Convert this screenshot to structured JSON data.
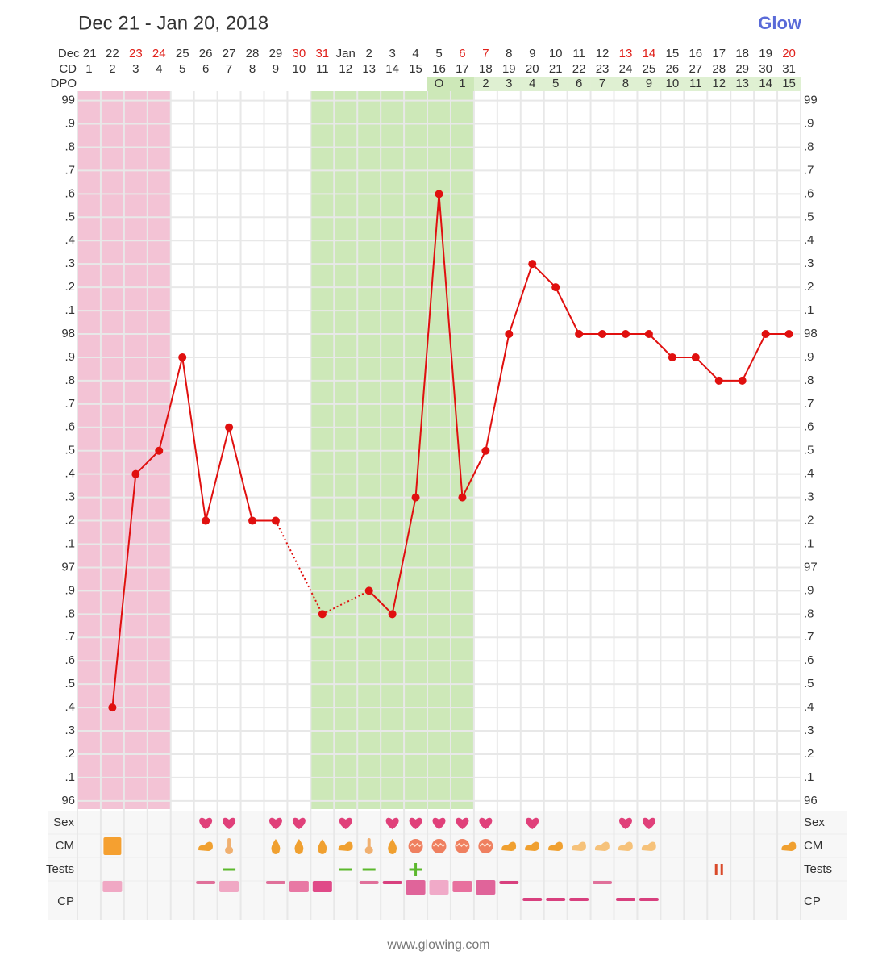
{
  "chart_data": {
    "type": "line",
    "title": "Dec 21 - Jan 20, 2018",
    "brand": "Glow",
    "footer": "www.glowing.com",
    "categories": [
      "Dec 21",
      "22",
      "23",
      "24",
      "25",
      "26",
      "27",
      "28",
      "29",
      "30",
      "31",
      "Jan",
      "2",
      "3",
      "4",
      "5",
      "6",
      "7",
      "8",
      "9",
      "10",
      "11",
      "12",
      "13",
      "14",
      "15",
      "16",
      "17",
      "18",
      "19",
      "20"
    ],
    "date_colors": [
      "#333",
      "#333",
      "#e0201a",
      "#e0201a",
      "#333",
      "#333",
      "#333",
      "#333",
      "#333",
      "#e0201a",
      "#e0201a",
      "#333",
      "#333",
      "#333",
      "#333",
      "#333",
      "#e0201a",
      "#e0201a",
      "#333",
      "#333",
      "#333",
      "#333",
      "#333",
      "#e0201a",
      "#e0201a",
      "#333",
      "#333",
      "#333",
      "#333",
      "#333",
      "#e0201a"
    ],
    "cd_label": "CD",
    "cd": [
      1,
      2,
      3,
      4,
      5,
      6,
      7,
      8,
      9,
      10,
      11,
      12,
      13,
      14,
      15,
      16,
      17,
      18,
      19,
      20,
      21,
      22,
      23,
      24,
      25,
      26,
      27,
      28,
      29,
      30,
      31
    ],
    "dpo_label": "DPO",
    "dpo": [
      null,
      null,
      null,
      null,
      null,
      null,
      null,
      null,
      null,
      null,
      null,
      null,
      null,
      null,
      null,
      "O",
      1,
      2,
      3,
      4,
      5,
      6,
      7,
      8,
      9,
      10,
      11,
      12,
      13,
      14,
      15
    ],
    "column_colors": [
      "#f3c3d5",
      "#f3c3d5",
      "#f3c3d5",
      "#f3c3d5",
      null,
      null,
      null,
      null,
      null,
      null,
      "#cde8b8",
      "#cde8b8",
      "#cde8b8",
      "#cde8b8",
      "#cde8b8",
      "#cde8b8",
      "#cde8b8",
      null,
      null,
      null,
      null,
      null,
      null,
      null,
      null,
      null,
      null,
      null,
      null,
      null,
      null
    ],
    "series": [
      {
        "color": "#e0100f",
        "values": [
          null,
          96.4,
          97.4,
          97.5,
          97.9,
          97.2,
          97.6,
          97.2,
          97.2,
          null,
          96.8,
          null,
          96.9,
          96.8,
          97.3,
          98.6,
          97.3,
          97.5,
          98.0,
          98.3,
          98.2,
          98.0,
          98.0,
          98.0,
          98.0,
          97.9,
          97.9,
          97.8,
          97.8,
          98.0,
          98.0
        ]
      }
    ],
    "ylim": [
      95.965,
      99.04
    ],
    "yticks": [
      96,
      {
        "value": 96.1,
        "label": ".1"
      },
      {
        "value": 96.2,
        "label": ".2"
      },
      {
        "value": 96.3,
        "label": ".3"
      },
      {
        "value": 96.4,
        "label": ".4"
      },
      {
        "value": 96.5,
        "label": ".5"
      },
      {
        "value": 96.6,
        "label": ".6"
      },
      {
        "value": 96.7,
        "label": ".7"
      },
      {
        "value": 96.8,
        "label": ".8"
      },
      {
        "value": 96.9,
        "label": ".9"
      },
      97,
      {
        "value": 97.1,
        "label": ".1"
      },
      {
        "value": 97.2,
        "label": ".2"
      },
      {
        "value": 97.3,
        "label": ".3"
      },
      {
        "value": 97.4,
        "label": ".4"
      },
      {
        "value": 97.5,
        "label": ".5"
      },
      {
        "value": 97.6,
        "label": ".6"
      },
      {
        "value": 97.7,
        "label": ".7"
      },
      {
        "value": 97.8,
        "label": ".8"
      },
      {
        "value": 97.9,
        "label": ".9"
      },
      98,
      {
        "value": 98.1,
        "label": ".1"
      },
      {
        "value": 98.2,
        "label": ".2"
      },
      {
        "value": 98.3,
        "label": ".3"
      },
      {
        "value": 98.4,
        "label": ".4"
      },
      {
        "value": 98.5,
        "label": ".5"
      },
      {
        "value": 98.6,
        "label": ".6"
      },
      {
        "value": 98.7,
        "label": ".7"
      },
      {
        "value": 98.8,
        "label": ".8"
      },
      {
        "value": 98.9,
        "label": ".9"
      },
      99
    ],
    "grid": true,
    "rows": {
      "sex_label": "Sex",
      "sex": [
        false,
        false,
        false,
        false,
        false,
        true,
        true,
        false,
        true,
        true,
        false,
        true,
        false,
        true,
        true,
        true,
        true,
        true,
        false,
        true,
        false,
        false,
        false,
        true,
        true,
        false,
        false,
        false,
        false,
        false,
        false
      ],
      "cm_label": "CM",
      "cm": [
        null,
        "square",
        null,
        null,
        null,
        "creamy",
        "sticky",
        null,
        "watery",
        "watery",
        "watery",
        "creamy",
        "sticky",
        "watery",
        "eggwhite",
        "eggwhite",
        "eggwhite",
        "eggwhite",
        "creamy",
        "creamy",
        "creamy",
        "creamy-light",
        "creamy-light",
        "creamy-light",
        "creamy-light",
        null,
        null,
        null,
        null,
        null,
        "creamy"
      ],
      "tests_label": "Tests",
      "tests": [
        null,
        null,
        null,
        null,
        null,
        null,
        "neg",
        null,
        null,
        null,
        null,
        "neg",
        "neg",
        null,
        "pos",
        null,
        null,
        null,
        null,
        null,
        null,
        null,
        null,
        null,
        null,
        null,
        null,
        "other",
        null,
        null,
        null
      ],
      "cp_label": "CP",
      "cp": [
        null,
        {
          "shape": "m",
          "color": "#f0a8c4"
        },
        null,
        null,
        null,
        {
          "shape": "t",
          "color": "#e0709a"
        },
        {
          "shape": "m",
          "color": "#f0a8c4"
        },
        null,
        {
          "shape": "t",
          "color": "#e0709a"
        },
        {
          "shape": "m",
          "color": "#e878a4"
        },
        {
          "shape": "m",
          "color": "#e04a88"
        },
        null,
        {
          "shape": "t",
          "color": "#e0709a"
        },
        {
          "shape": "t",
          "color": "#d8407e"
        },
        {
          "shape": "b",
          "color": "#e0649a"
        },
        {
          "shape": "b",
          "color": "#f0aac8"
        },
        {
          "shape": "m",
          "color": "#e8709e"
        },
        {
          "shape": "b",
          "color": "#e0649a"
        },
        {
          "shape": "t",
          "color": "#d8407e"
        },
        {
          "shape": "l",
          "color": "#d8407e"
        },
        {
          "shape": "l",
          "color": "#d8407e"
        },
        {
          "shape": "l",
          "color": "#d8407e"
        },
        {
          "shape": "t",
          "color": "#e0709a"
        },
        {
          "shape": "l",
          "color": "#d8407e"
        },
        {
          "shape": "l",
          "color": "#d8407e"
        },
        null,
        null,
        null,
        null,
        null,
        null
      ]
    }
  }
}
